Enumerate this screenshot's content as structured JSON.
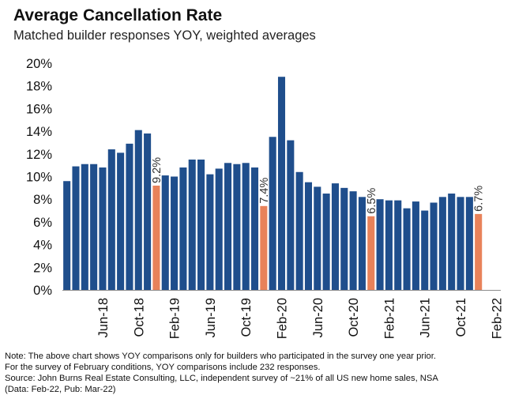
{
  "title": "Average Cancellation Rate",
  "subtitle": "Matched builder responses YOY, weighted averages",
  "notes": [
    "Note: The above chart shows YOY comparisons only for builders who participated in the survey one year prior.",
    "For the survey of February conditions, YOY comparisons include 232 responses.",
    "Source: John Burns Real Estate Consulting, LLC, independent survey of ~21% of all US new home sales, NSA",
    "(Data: Feb-22, Pub: Mar-22)"
  ],
  "colors": {
    "bar": "#1f4e8c",
    "highlight": "#e8825a",
    "axis": "#8c8c8c",
    "text": "#111111"
  },
  "chart_data": {
    "type": "bar",
    "title": "Average Cancellation Rate",
    "subtitle": "Matched builder responses YOY, weighted averages",
    "xlabel": "",
    "ylabel": "",
    "ylim": [
      0,
      20
    ],
    "yticks": [
      "0%",
      "2%",
      "4%",
      "6%",
      "8%",
      "10%",
      "12%",
      "14%",
      "16%",
      "18%",
      "20%"
    ],
    "categories": [
      "Feb-18",
      "Mar-18",
      "Apr-18",
      "May-18",
      "Jun-18",
      "Jul-18",
      "Aug-18",
      "Sep-18",
      "Oct-18",
      "Nov-18",
      "Dec-18",
      "Jan-19",
      "Feb-19",
      "Mar-19",
      "Apr-19",
      "May-19",
      "Jun-19",
      "Jul-19",
      "Aug-19",
      "Sep-19",
      "Oct-19",
      "Nov-19",
      "Dec-19",
      "Jan-20",
      "Feb-20",
      "Mar-20",
      "Apr-20",
      "May-20",
      "Jun-20",
      "Jul-20",
      "Aug-20",
      "Sep-20",
      "Oct-20",
      "Nov-20",
      "Dec-20",
      "Jan-21",
      "Feb-21",
      "Mar-21",
      "Apr-21",
      "May-21",
      "Jun-21",
      "Jul-21",
      "Aug-21",
      "Sep-21",
      "Oct-21",
      "Nov-21",
      "Dec-21",
      "Jan-22",
      "Feb-22"
    ],
    "tick_labels": [
      {
        "index": 4,
        "label": "Jun-18"
      },
      {
        "index": 8,
        "label": "Oct-18"
      },
      {
        "index": 12,
        "label": "Feb-19"
      },
      {
        "index": 16,
        "label": "Jun-19"
      },
      {
        "index": 20,
        "label": "Oct-19"
      },
      {
        "index": 24,
        "label": "Feb-20"
      },
      {
        "index": 28,
        "label": "Jun-20"
      },
      {
        "index": 32,
        "label": "Oct-20"
      },
      {
        "index": 36,
        "label": "Feb-21"
      },
      {
        "index": 40,
        "label": "Jun-21"
      },
      {
        "index": 44,
        "label": "Oct-21"
      },
      {
        "index": 48,
        "label": "Feb-22"
      }
    ],
    "values": [
      9.6,
      10.9,
      11.1,
      11.1,
      10.8,
      12.4,
      12.1,
      12.9,
      14.1,
      13.8,
      9.2,
      10.1,
      10.0,
      10.8,
      11.5,
      11.5,
      10.2,
      10.7,
      11.2,
      11.1,
      11.2,
      10.8,
      7.4,
      13.5,
      18.8,
      13.2,
      10.4,
      9.5,
      9.1,
      8.5,
      9.4,
      9.0,
      8.7,
      8.2,
      6.5,
      8.0,
      7.9,
      7.9,
      7.2,
      7.8,
      7.0,
      7.7,
      8.2,
      8.5,
      8.2,
      8.2,
      6.7,
      0,
      0
    ],
    "highlighted": [
      {
        "index": 10,
        "label": "9.2%"
      },
      {
        "index": 22,
        "label": "7.4%"
      },
      {
        "index": 34,
        "label": "6.5%"
      },
      {
        "index": 46,
        "label": "6.7%"
      }
    ]
  }
}
